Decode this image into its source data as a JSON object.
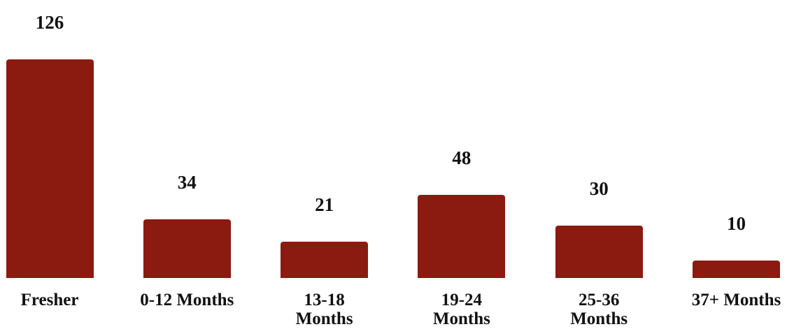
{
  "chart_data": {
    "type": "bar",
    "categories": [
      "Fresher",
      "0-12 Months",
      "13-18 Months",
      "19-24 Months",
      "25-36 Months",
      "37+ Months"
    ],
    "values": [
      126,
      34,
      21,
      48,
      30,
      10
    ],
    "color": "#8b1a10"
  }
}
